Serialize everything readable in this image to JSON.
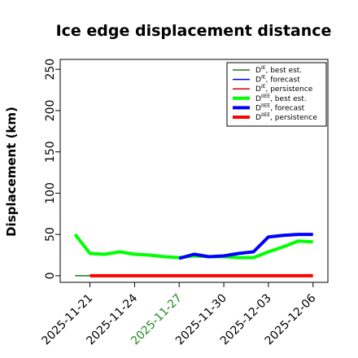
{
  "chart_data": {
    "type": "line",
    "title": "Ice edge displacement distance",
    "xlabel": "",
    "ylabel": "Displacement (km)",
    "x_ticks": [
      "2025-11-21",
      "2025-11-24",
      "2025-11-27",
      "2025-11-30",
      "2025-12-03",
      "2025-12-06"
    ],
    "x_tick_colors": [
      "#000000",
      "#000000",
      "#228b22",
      "#000000",
      "#000000",
      "#000000"
    ],
    "xlim": [
      "2025-11-19",
      "2025-12-07"
    ],
    "ylim": [
      -8,
      262
    ],
    "y_ticks": [
      0,
      50,
      100,
      150,
      200,
      250
    ],
    "grid": false,
    "legend_position": "top-right",
    "series": [
      {
        "name": "D^IE_best est.",
        "legend": {
          "main": "D",
          "sup": "IE",
          "text": "best est."
        },
        "color": "#1e7b1e",
        "width": 1.5,
        "x": [
          "2025-11-20",
          "2025-11-27"
        ],
        "y": [
          0,
          0
        ]
      },
      {
        "name": "D^IE_forecast",
        "legend": {
          "main": "D",
          "sup": "IE",
          "text": "forecast"
        },
        "color": "#0000ff",
        "width": 1.5,
        "x": [],
        "y": []
      },
      {
        "name": "D^IE_persistence",
        "legend": {
          "main": "D",
          "sup": "IE",
          "text": "persistence"
        },
        "color": "#cc0000",
        "width": 1.5,
        "x": [],
        "y": []
      },
      {
        "name": "D^IIEE_best est.",
        "legend": {
          "main": "D",
          "sup": "IIEE",
          "text": "best est."
        },
        "color": "#00ff00",
        "width": 4,
        "x": [
          "2025-11-20",
          "2025-11-21",
          "2025-11-22",
          "2025-11-23",
          "2025-11-24",
          "2025-11-25",
          "2025-11-26",
          "2025-11-27",
          "2025-11-28",
          "2025-11-29",
          "2025-11-30",
          "2025-12-01",
          "2025-12-02",
          "2025-12-03",
          "2025-12-04",
          "2025-12-05",
          "2025-12-06"
        ],
        "y": [
          50,
          27,
          26,
          29,
          26,
          25,
          23,
          22,
          24,
          23,
          23,
          22,
          22,
          29,
          35,
          42,
          41
        ]
      },
      {
        "name": "D^IIEE_forecast",
        "legend": {
          "main": "D",
          "sup": "IIEE",
          "text": "forecast"
        },
        "color": "#0000ff",
        "width": 4,
        "x": [
          "2025-11-27",
          "2025-11-28",
          "2025-11-29",
          "2025-11-30",
          "2025-12-01",
          "2025-12-02",
          "2025-12-03",
          "2025-12-04",
          "2025-12-05",
          "2025-12-06"
        ],
        "y": [
          21,
          26,
          23,
          24,
          27,
          29,
          47,
          49,
          50,
          50
        ]
      },
      {
        "name": "D^IIEE_persistence",
        "legend": {
          "main": "D",
          "sup": "IIEE",
          "text": "persistence"
        },
        "color": "#ff0000",
        "width": 4,
        "x": [
          "2025-11-21",
          "2025-12-06"
        ],
        "y": [
          0,
          0
        ]
      }
    ]
  }
}
